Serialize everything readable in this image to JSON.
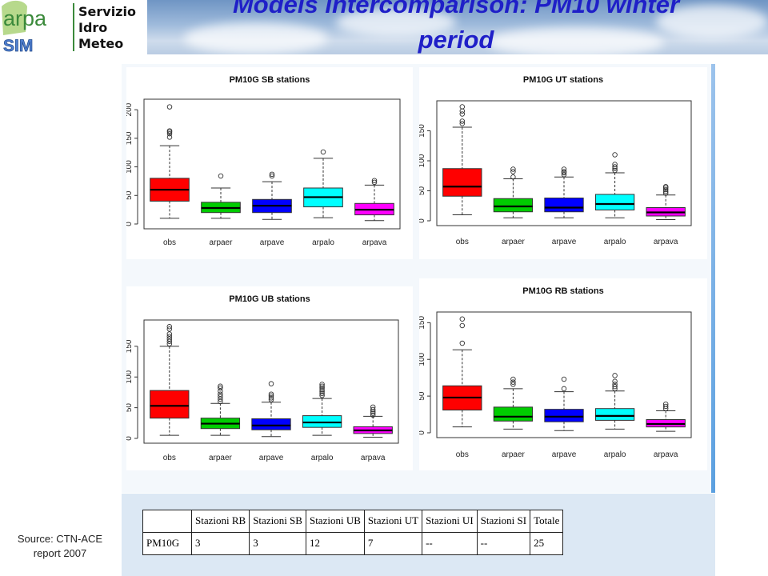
{
  "header": {
    "title_line1": "Models intercomparison: PM10 winter",
    "title_line2": "period",
    "logo_word": "arpa",
    "logo_sim": "SIM",
    "logo_lines": [
      "Servizio",
      "Idro",
      "Meteo"
    ]
  },
  "source": {
    "line1": "Source: CTN-ACE",
    "line2": "report 2007"
  },
  "colors": {
    "obs": "#ff0000",
    "arpaer": "#00cc00",
    "arpave": "#0000ff",
    "arpalo": "#00ffff",
    "arpava": "#ff00ff",
    "title": "#1f1fc8"
  },
  "chart_data": [
    {
      "type": "box",
      "title": "PM10G SB stations",
      "categories": [
        "obs",
        "arpaer",
        "arpave",
        "arpalo",
        "arpava"
      ],
      "ylim": [
        0,
        210
      ],
      "yticks": [
        0,
        50,
        100,
        150,
        200
      ],
      "boxes": [
        {
          "name": "obs",
          "min": 10,
          "q1": 40,
          "median": 60,
          "q3": 80,
          "max": 137,
          "outliers": [
            152,
            158,
            161,
            163,
            205
          ]
        },
        {
          "name": "arpaer",
          "min": 10,
          "q1": 20,
          "median": 28,
          "q3": 38,
          "max": 63,
          "outliers": [
            84
          ]
        },
        {
          "name": "arpave",
          "min": 8,
          "q1": 20,
          "median": 32,
          "q3": 43,
          "max": 74,
          "outliers": [
            84,
            87
          ]
        },
        {
          "name": "arpalo",
          "min": 11,
          "q1": 30,
          "median": 47,
          "q3": 63,
          "max": 115,
          "outliers": [
            126
          ]
        },
        {
          "name": "arpava",
          "min": 6,
          "q1": 16,
          "median": 25,
          "q3": 36,
          "max": 68,
          "outliers": [
            73,
            76
          ]
        }
      ]
    },
    {
      "type": "box",
      "title": "PM10G UT stations",
      "categories": [
        "obs",
        "arpaer",
        "arpave",
        "arpalo",
        "arpava"
      ],
      "ylim": [
        0,
        192
      ],
      "yticks": [
        0,
        50,
        100,
        150
      ],
      "boxes": [
        {
          "name": "obs",
          "min": 10,
          "q1": 41,
          "median": 57,
          "q3": 87,
          "max": 156,
          "outliers": [
            162,
            166,
            178,
            183,
            190
          ]
        },
        {
          "name": "arpaer",
          "min": 5,
          "q1": 15,
          "median": 24,
          "q3": 37,
          "max": 70,
          "outliers": [
            73,
            82,
            86
          ]
        },
        {
          "name": "arpave",
          "min": 5,
          "q1": 15,
          "median": 22,
          "q3": 38,
          "max": 73,
          "outliers": [
            77,
            80,
            82,
            86
          ]
        },
        {
          "name": "arpalo",
          "min": 5,
          "q1": 18,
          "median": 28,
          "q3": 44,
          "max": 80,
          "outliers": [
            84,
            87,
            90,
            94,
            110
          ]
        },
        {
          "name": "arpava",
          "min": 2,
          "q1": 8,
          "median": 14,
          "q3": 22,
          "max": 43,
          "outliers": [
            46,
            49,
            52,
            55,
            57
          ]
        }
      ]
    },
    {
      "type": "box",
      "title": "PM10G UB stations",
      "categories": [
        "obs",
        "arpaer",
        "arpave",
        "arpalo",
        "arpava"
      ],
      "ylim": [
        0,
        185
      ],
      "yticks": [
        0,
        50,
        100,
        150
      ],
      "boxes": [
        {
          "name": "obs",
          "min": 5,
          "q1": 33,
          "median": 53,
          "q3": 78,
          "max": 150,
          "outliers": [
            154,
            158,
            162,
            166,
            170,
            178,
            182
          ]
        },
        {
          "name": "arpaer",
          "min": 5,
          "q1": 16,
          "median": 24,
          "q3": 33,
          "max": 57,
          "outliers": [
            60,
            64,
            68,
            72,
            77,
            82,
            85
          ]
        },
        {
          "name": "arpave",
          "min": 3,
          "q1": 14,
          "median": 21,
          "q3": 32,
          "max": 59,
          "outliers": [
            63,
            66,
            69,
            72,
            89
          ]
        },
        {
          "name": "arpalo",
          "min": 5,
          "q1": 18,
          "median": 26,
          "q3": 37,
          "max": 65,
          "outliers": [
            70,
            73,
            76,
            79,
            82,
            85,
            88
          ]
        },
        {
          "name": "arpava",
          "min": 2,
          "q1": 8,
          "median": 13,
          "q3": 19,
          "max": 36,
          "outliers": [
            38,
            41,
            44,
            47,
            51
          ]
        }
      ]
    },
    {
      "type": "box",
      "title": "PM10G RB stations",
      "categories": [
        "obs",
        "arpaer",
        "arpave",
        "arpalo",
        "arpava"
      ],
      "ylim": [
        0,
        158
      ],
      "yticks": [
        0,
        50,
        100,
        150
      ],
      "boxes": [
        {
          "name": "obs",
          "min": 8,
          "q1": 31,
          "median": 48,
          "q3": 64,
          "max": 113,
          "outliers": [
            122,
            146,
            155
          ]
        },
        {
          "name": "arpaer",
          "min": 5,
          "q1": 16,
          "median": 22,
          "q3": 35,
          "max": 60,
          "outliers": [
            66,
            69,
            73
          ]
        },
        {
          "name": "arpave",
          "min": 3,
          "q1": 15,
          "median": 22,
          "q3": 32,
          "max": 56,
          "outliers": [
            60,
            73
          ]
        },
        {
          "name": "arpalo",
          "min": 5,
          "q1": 17,
          "median": 23,
          "q3": 33,
          "max": 57,
          "outliers": [
            60,
            63,
            66,
            70,
            78
          ]
        },
        {
          "name": "arpava",
          "min": 2,
          "q1": 8,
          "median": 12,
          "q3": 18,
          "max": 30,
          "outliers": [
            33,
            36,
            39
          ]
        }
      ]
    }
  ],
  "table": {
    "headers": [
      "",
      "Stazioni RB",
      "Stazioni SB",
      "Stazioni UB",
      "Stazioni UT",
      "Stazioni UI",
      "Stazioni SI",
      "Totale"
    ],
    "rows": [
      [
        "PM10G",
        "3",
        "3",
        "12",
        "7",
        "--",
        "--",
        "25"
      ]
    ]
  }
}
